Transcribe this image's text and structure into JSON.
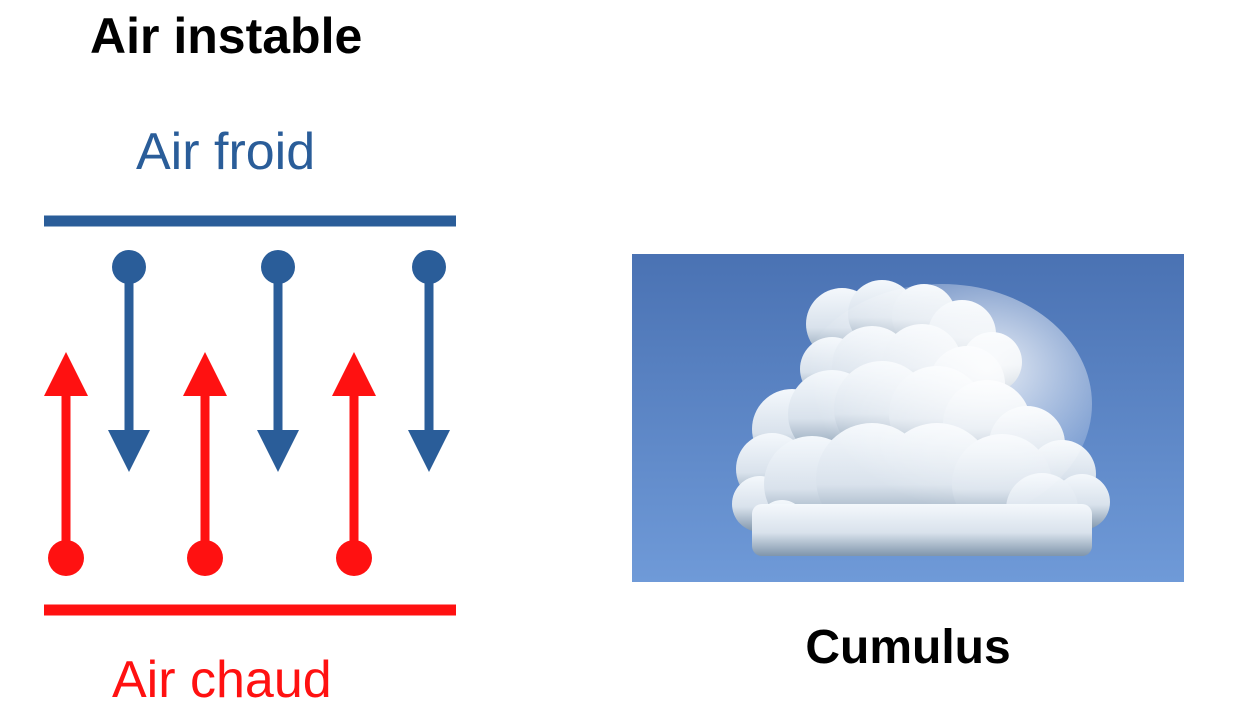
{
  "diagram": {
    "title": "Air instable",
    "cold_label": "Air froid",
    "warm_label": "Air chaud"
  },
  "photo": {
    "caption": "Cumulus"
  },
  "colors": {
    "cold": "#2a5d99",
    "warm": "#ff1111",
    "sky_top": "#4a72b3",
    "sky_bottom": "#6f9ad8"
  }
}
